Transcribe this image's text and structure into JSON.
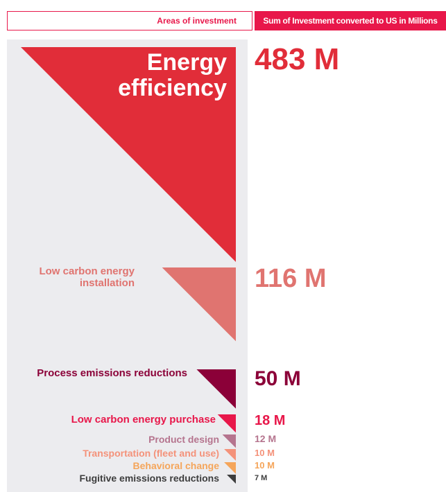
{
  "chart_data": {
    "type": "triangle",
    "header": {
      "left": "Areas of investment",
      "right": "Sum of Investment converted to US in Millions"
    },
    "categories": [
      "Energy efficiency",
      "Low carbon energy installation",
      "Process emissions reductions",
      "Low carbon energy purchase",
      "Product design",
      "Transportation (fleet and use)",
      "Behavioral change",
      "Fugitive emissions reductions"
    ],
    "values": [
      483,
      116,
      50,
      18,
      12,
      10,
      10,
      7
    ],
    "value_labels": [
      "483 M",
      "116 M",
      "50 M",
      "18 M",
      "12 M",
      "10 M",
      "10 M",
      "7 M"
    ],
    "colors": [
      "#e12d39",
      "#e07470",
      "#8b0038",
      "#e8174a",
      "#b5748e",
      "#f4927a",
      "#f5a55a",
      "#3d3d3d"
    ]
  }
}
